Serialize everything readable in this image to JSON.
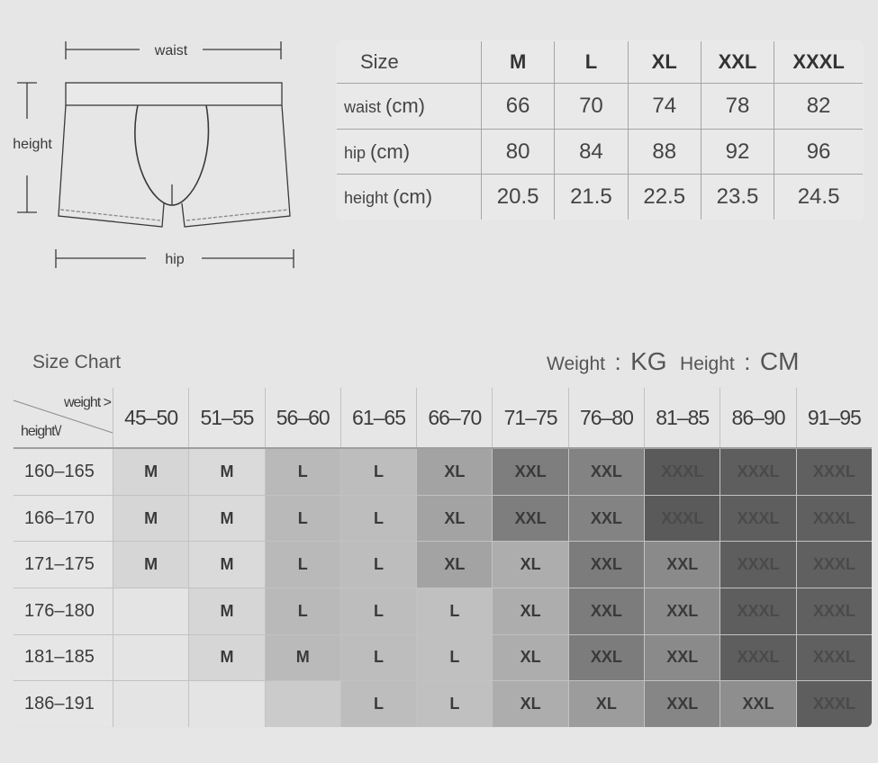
{
  "diagram": {
    "waist_label": "waist",
    "height_label": "height",
    "hip_label": "hip"
  },
  "measure_table": {
    "header": [
      "Size",
      "M",
      "L",
      "XL",
      "XXL",
      "XXXL"
    ],
    "rows": [
      {
        "label": "waist",
        "unit": "(cm)",
        "values": [
          "66",
          "70",
          "74",
          "78",
          "82"
        ]
      },
      {
        "label": "hip",
        "unit": "(cm)",
        "values": [
          "80",
          "84",
          "88",
          "92",
          "96"
        ]
      },
      {
        "label": "height",
        "unit": "(cm)",
        "values": [
          "20.5",
          "21.5",
          "22.5",
          "23.5",
          "24.5"
        ]
      }
    ]
  },
  "size_chart": {
    "title": "Size Chart",
    "units": {
      "weight_label": "Weight",
      "weight_sep": ":",
      "weight_unit": "KG",
      "height_label": "Height",
      "height_sep": ":",
      "height_unit": "CM"
    },
    "corner_weight": "weight >",
    "corner_height": "height\\/",
    "columns": [
      "45–50",
      "51–55",
      "56–60",
      "61–65",
      "66–70",
      "71–75",
      "76–80",
      "81–85",
      "86–90",
      "91–95"
    ],
    "rows": [
      {
        "height": "160–165",
        "sizes": [
          "M",
          "M",
          "L",
          "L",
          "XL",
          "XXL",
          "XXL",
          "XXXL",
          "XXXL",
          "XXXL"
        ],
        "colors": [
          "#d6d6d6",
          "#dadada",
          "#b9b9b9",
          "#bdbdbd",
          "#a3a3a3",
          "#7e7e7e",
          "#838383",
          "#5a5a5a",
          "#5e5e5e",
          "#606060"
        ]
      },
      {
        "height": "166–170",
        "sizes": [
          "M",
          "M",
          "L",
          "L",
          "XL",
          "XXL",
          "XXL",
          "XXXL",
          "XXXL",
          "XXXL"
        ],
        "colors": [
          "#d6d6d6",
          "#dadada",
          "#b9b9b9",
          "#bdbdbd",
          "#a3a3a3",
          "#7e7e7e",
          "#838383",
          "#5a5a5a",
          "#5e5e5e",
          "#606060"
        ]
      },
      {
        "height": "171–175",
        "sizes": [
          "M",
          "M",
          "L",
          "L",
          "XL",
          "XL",
          "XXL",
          "XXL",
          "XXXL",
          "XXXL"
        ],
        "colors": [
          "#d6d6d6",
          "#dadada",
          "#b9b9b9",
          "#bdbdbd",
          "#a3a3a3",
          "#adadad",
          "#7c7c7c",
          "#8a8a8a",
          "#5e5e5e",
          "#606060"
        ]
      },
      {
        "height": "176–180",
        "sizes": [
          "",
          "M",
          "L",
          "L",
          "L",
          "XL",
          "XXL",
          "XXL",
          "XXXL",
          "XXXL"
        ],
        "colors": [
          "#e4e4e4",
          "#d6d6d6",
          "#b9b9b9",
          "#bdbdbd",
          "#c0c0c0",
          "#adadad",
          "#7c7c7c",
          "#8a8a8a",
          "#5e5e5e",
          "#606060"
        ]
      },
      {
        "height": "181–185",
        "sizes": [
          "",
          "M",
          "M",
          "L",
          "L",
          "XL",
          "XXL",
          "XXL",
          "XXXL",
          "XXXL"
        ],
        "colors": [
          "#e4e4e4",
          "#d6d6d6",
          "#bababa",
          "#bdbdbd",
          "#c0c0c0",
          "#adadad",
          "#7c7c7c",
          "#8a8a8a",
          "#5e5e5e",
          "#606060"
        ]
      },
      {
        "height": "186–191",
        "sizes": [
          "",
          "",
          "",
          "L",
          "L",
          "XL",
          "XL",
          "XXL",
          "XXL",
          "XXXL"
        ],
        "colors": [
          "#e4e4e4",
          "#e4e4e4",
          "#cbcbcb",
          "#bdbdbd",
          "#c0c0c0",
          "#adadad",
          "#9c9c9c",
          "#868686",
          "#8e8e8e",
          "#5e5e5e"
        ]
      }
    ]
  }
}
